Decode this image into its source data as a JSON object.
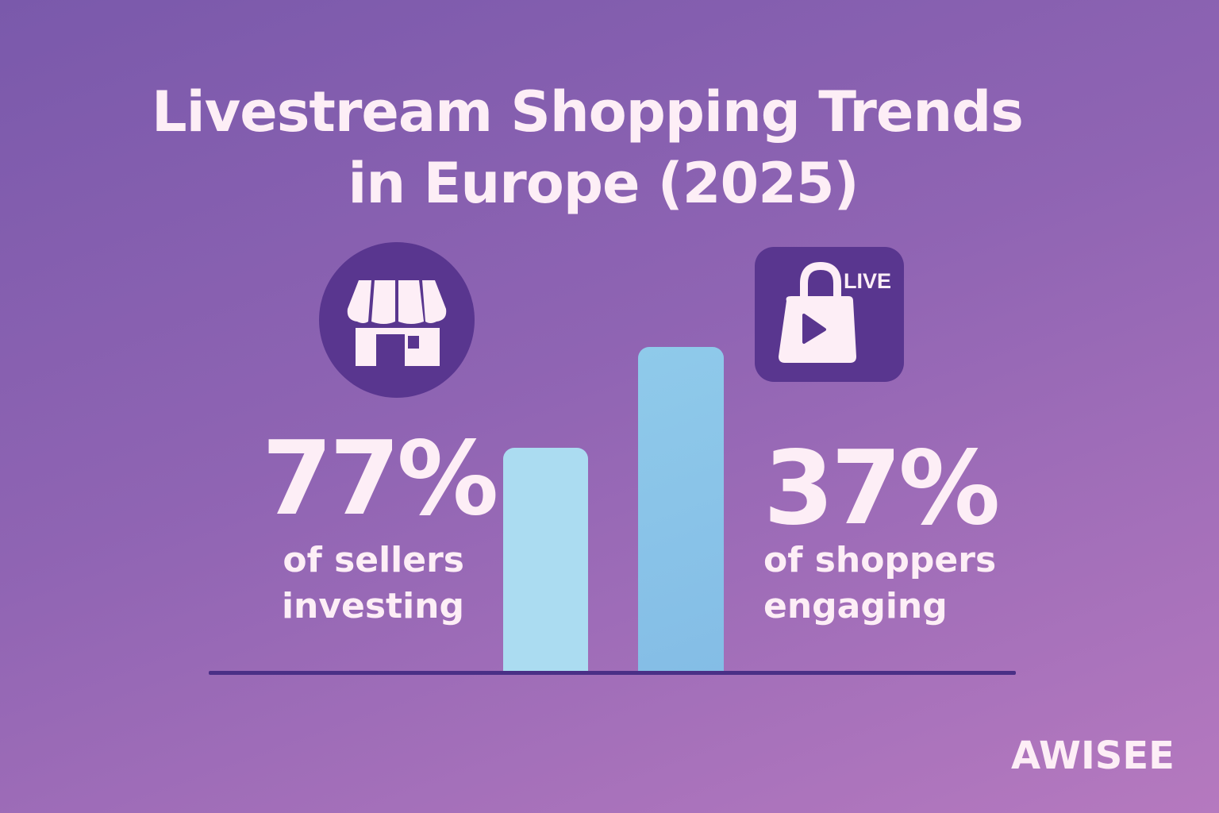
{
  "title_line1": "Livestream Shopping Trends",
  "title_line2": "in Europe (2025)",
  "left_stat": {
    "value": "77%",
    "line1": "of sellers",
    "line2": "investing",
    "icon": "storefront-icon"
  },
  "right_stat": {
    "value": "37%",
    "line1": "of shoppers",
    "line2": "engaging",
    "icon": "live-shopping-bag-icon",
    "badge": "LIVE"
  },
  "brand": "AWISEE",
  "colors": {
    "bar_left": "#abdcf1",
    "bar_right": "#88c3e8",
    "icon_bg": "#59368f",
    "text": "#fdeef6",
    "axis": "#4a2f86"
  },
  "chart_data": {
    "type": "bar",
    "note_scale": "relative heights, no axis printed",
    "values": [
      69,
      100
    ],
    "ylim": [
      0,
      100
    ],
    "grid": false
  }
}
